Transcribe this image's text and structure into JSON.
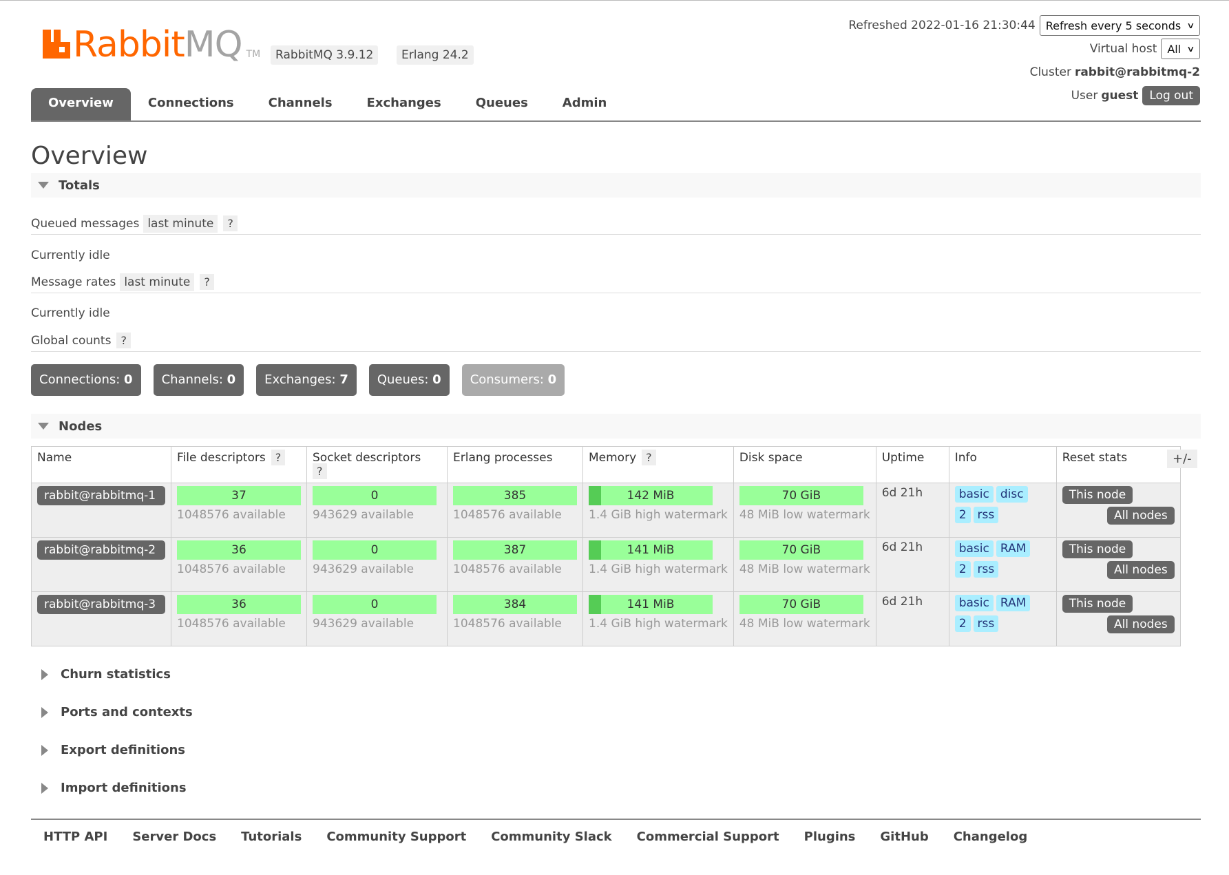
{
  "header": {
    "logo_rabbit": "Rabbit",
    "logo_mq": "MQ",
    "logo_tm": "TM",
    "version": "RabbitMQ 3.9.12",
    "erlang": "Erlang 24.2",
    "refreshed_label": "Refreshed 2022-01-16 21:30:44",
    "refresh_select": "Refresh every 5 seconds",
    "vhost_label": "Virtual host",
    "vhost_value": "All",
    "cluster_label": "Cluster",
    "cluster_value": "rabbit@rabbitmq-2",
    "user_label": "User",
    "user_value": "guest",
    "logout": "Log out"
  },
  "nav": {
    "tabs": [
      "Overview",
      "Connections",
      "Channels",
      "Exchanges",
      "Queues",
      "Admin"
    ],
    "active": "Overview"
  },
  "page_title": "Overview",
  "totals": {
    "title": "Totals",
    "queued_label": "Queued messages",
    "queued_range": "last minute",
    "help": "?",
    "idle1": "Currently idle",
    "rates_label": "Message rates",
    "rates_range": "last minute",
    "idle2": "Currently idle",
    "global_label": "Global counts"
  },
  "counts": [
    {
      "label": "Connections:",
      "value": "0"
    },
    {
      "label": "Channels:",
      "value": "0"
    },
    {
      "label": "Exchanges:",
      "value": "7"
    },
    {
      "label": "Queues:",
      "value": "0"
    },
    {
      "label": "Consumers:",
      "value": "0"
    }
  ],
  "nodes": {
    "title": "Nodes",
    "headers": [
      "Name",
      "File descriptors",
      "Socket descriptors",
      "Erlang processes",
      "Memory",
      "Disk space",
      "Uptime",
      "Info",
      "Reset stats"
    ],
    "plusminus": "+/-",
    "rows": [
      {
        "name": "rabbit@rabbitmq-1",
        "fd": "37",
        "fd_avail": "1048576 available",
        "sd": "0",
        "sd_avail": "943629 available",
        "ep": "385",
        "ep_avail": "1048576 available",
        "mem": "142 MiB",
        "mem_sub": "1.4 GiB high watermark",
        "disk": "70 GiB",
        "disk_sub": "48 MiB low watermark",
        "uptime": "6d 21h",
        "info": [
          "basic",
          "disc",
          "2",
          "rss"
        ],
        "this_node": "This node",
        "all_nodes": "All nodes"
      },
      {
        "name": "rabbit@rabbitmq-2",
        "fd": "36",
        "fd_avail": "1048576 available",
        "sd": "0",
        "sd_avail": "943629 available",
        "ep": "387",
        "ep_avail": "1048576 available",
        "mem": "141 MiB",
        "mem_sub": "1.4 GiB high watermark",
        "disk": "70 GiB",
        "disk_sub": "48 MiB low watermark",
        "uptime": "6d 21h",
        "info": [
          "basic",
          "RAM",
          "2",
          "rss"
        ],
        "this_node": "This node",
        "all_nodes": "All nodes"
      },
      {
        "name": "rabbit@rabbitmq-3",
        "fd": "36",
        "fd_avail": "1048576 available",
        "sd": "0",
        "sd_avail": "943629 available",
        "ep": "384",
        "ep_avail": "1048576 available",
        "mem": "141 MiB",
        "mem_sub": "1.4 GiB high watermark",
        "disk": "70 GiB",
        "disk_sub": "48 MiB low watermark",
        "uptime": "6d 21h",
        "info": [
          "basic",
          "RAM",
          "2",
          "rss"
        ],
        "this_node": "This node",
        "all_nodes": "All nodes"
      }
    ]
  },
  "collapsed_sections": [
    "Churn statistics",
    "Ports and contexts",
    "Export definitions",
    "Import definitions"
  ],
  "footer": [
    "HTTP API",
    "Server Docs",
    "Tutorials",
    "Community Support",
    "Community Slack",
    "Commercial Support",
    "Plugins",
    "GitHub",
    "Changelog"
  ]
}
